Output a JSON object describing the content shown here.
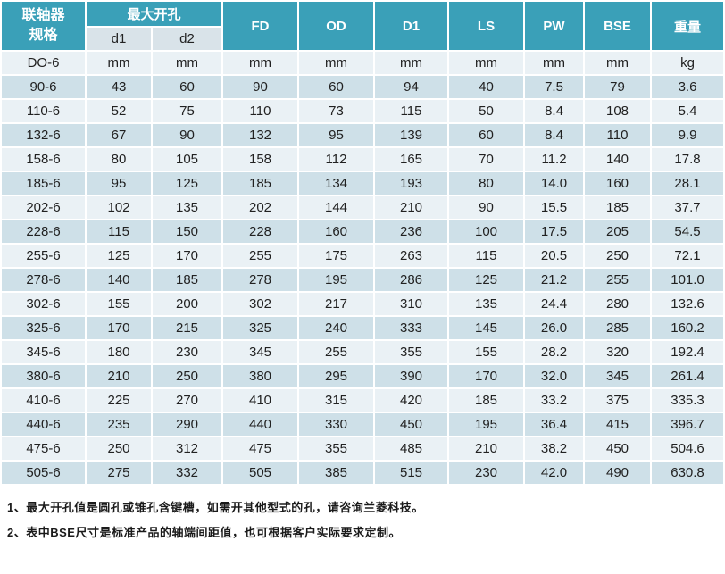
{
  "colors": {
    "header_teal": "#3aa0b8",
    "subheader_bg": "#d9e3e9",
    "row_light": "#eaf1f5",
    "row_dark": "#cee0e8",
    "header_text": "#ffffff",
    "cell_text": "#212121"
  },
  "table": {
    "header": {
      "spec_line1": "联轴器",
      "spec_line2": "规格",
      "max_bore": "最大开孔",
      "sub_d1": "d1",
      "sub_d2": "d2",
      "cols": [
        "FD",
        "OD",
        "D1",
        "LS",
        "PW",
        "BSE",
        "重量"
      ]
    },
    "units_row": {
      "spec": "DO-6",
      "values": [
        "mm",
        "mm",
        "mm",
        "mm",
        "mm",
        "mm",
        "mm",
        "mm",
        "kg"
      ]
    },
    "rows": [
      {
        "spec": "90-6",
        "values": [
          "43",
          "60",
          "90",
          "60",
          "94",
          "40",
          "7.5",
          "79",
          "3.6"
        ]
      },
      {
        "spec": "110-6",
        "values": [
          "52",
          "75",
          "110",
          "73",
          "115",
          "50",
          "8.4",
          "108",
          "5.4"
        ]
      },
      {
        "spec": "132-6",
        "values": [
          "67",
          "90",
          "132",
          "95",
          "139",
          "60",
          "8.4",
          "110",
          "9.9"
        ]
      },
      {
        "spec": "158-6",
        "values": [
          "80",
          "105",
          "158",
          "112",
          "165",
          "70",
          "11.2",
          "140",
          "17.8"
        ]
      },
      {
        "spec": "185-6",
        "values": [
          "95",
          "125",
          "185",
          "134",
          "193",
          "80",
          "14.0",
          "160",
          "28.1"
        ]
      },
      {
        "spec": "202-6",
        "values": [
          "102",
          "135",
          "202",
          "144",
          "210",
          "90",
          "15.5",
          "185",
          "37.7"
        ]
      },
      {
        "spec": "228-6",
        "values": [
          "115",
          "150",
          "228",
          "160",
          "236",
          "100",
          "17.5",
          "205",
          "54.5"
        ]
      },
      {
        "spec": "255-6",
        "values": [
          "125",
          "170",
          "255",
          "175",
          "263",
          "115",
          "20.5",
          "250",
          "72.1"
        ]
      },
      {
        "spec": "278-6",
        "values": [
          "140",
          "185",
          "278",
          "195",
          "286",
          "125",
          "21.2",
          "255",
          "101.0"
        ]
      },
      {
        "spec": "302-6",
        "values": [
          "155",
          "200",
          "302",
          "217",
          "310",
          "135",
          "24.4",
          "280",
          "132.6"
        ]
      },
      {
        "spec": "325-6",
        "values": [
          "170",
          "215",
          "325",
          "240",
          "333",
          "145",
          "26.0",
          "285",
          "160.2"
        ]
      },
      {
        "spec": "345-6",
        "values": [
          "180",
          "230",
          "345",
          "255",
          "355",
          "155",
          "28.2",
          "320",
          "192.4"
        ]
      },
      {
        "spec": "380-6",
        "values": [
          "210",
          "250",
          "380",
          "295",
          "390",
          "170",
          "32.0",
          "345",
          "261.4"
        ]
      },
      {
        "spec": "410-6",
        "values": [
          "225",
          "270",
          "410",
          "315",
          "420",
          "185",
          "33.2",
          "375",
          "335.3"
        ]
      },
      {
        "spec": "440-6",
        "values": [
          "235",
          "290",
          "440",
          "330",
          "450",
          "195",
          "36.4",
          "415",
          "396.7"
        ]
      },
      {
        "spec": "475-6",
        "values": [
          "250",
          "312",
          "475",
          "355",
          "485",
          "210",
          "38.2",
          "450",
          "504.6"
        ]
      },
      {
        "spec": "505-6",
        "values": [
          "275",
          "332",
          "505",
          "385",
          "515",
          "230",
          "42.0",
          "490",
          "630.8"
        ]
      }
    ]
  },
  "notes": [
    "1、最大开孔值是圆孔或锥孔含键槽，如需开其他型式的孔，请咨询兰菱科技。",
    "2、表中BSE尺寸是标准产品的轴端间距值，也可根据客户实际要求定制。"
  ]
}
